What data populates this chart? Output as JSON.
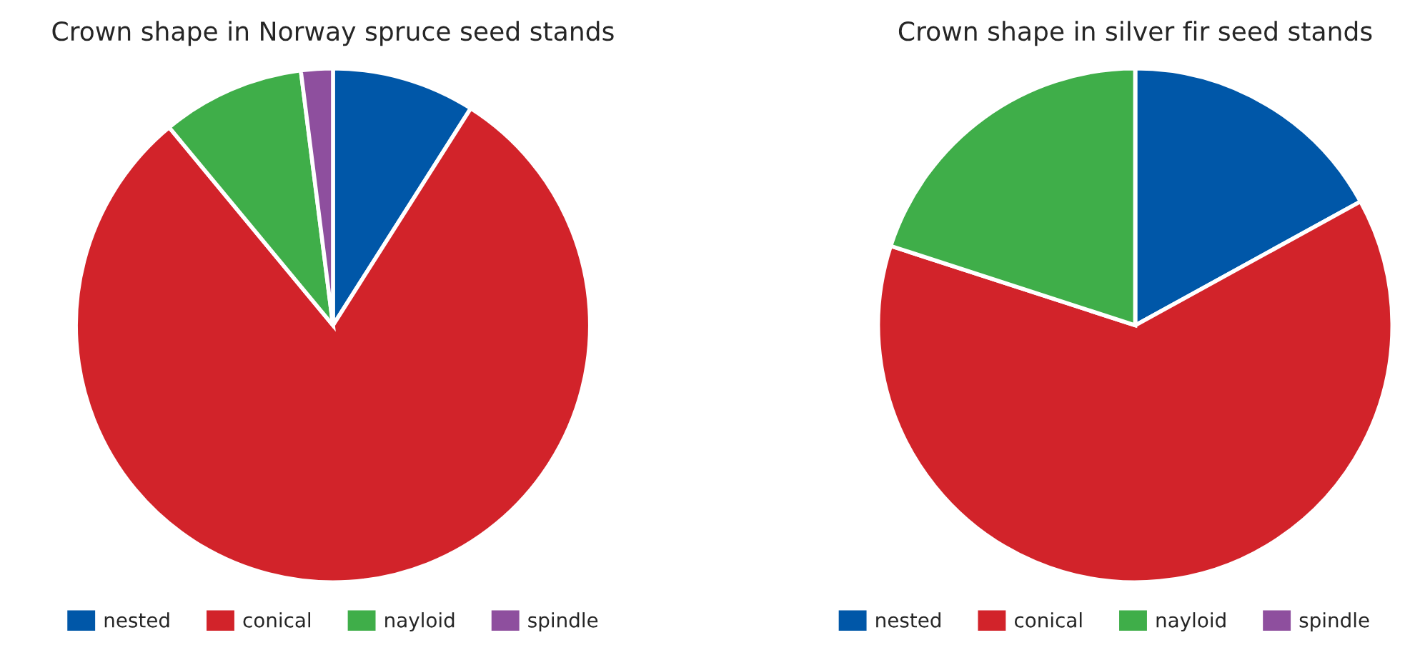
{
  "chart_data": [
    {
      "type": "pie",
      "title": "Crown shape in Norway spruce seed stands",
      "categories": [
        "nested",
        "conical",
        "nayloid",
        "spindle"
      ],
      "values": [
        9,
        80,
        9,
        2
      ],
      "colors": [
        "#0057a8",
        "#d2232a",
        "#3fae49",
        "#8e4f9e"
      ],
      "legend": "bottom"
    },
    {
      "type": "pie",
      "title": "Crown shape in silver fir seed stands",
      "categories": [
        "nested",
        "conical",
        "nayloid",
        "spindle"
      ],
      "values": [
        17,
        63,
        20,
        0
      ],
      "colors": [
        "#0057a8",
        "#d2232a",
        "#3fae49",
        "#8e4f9e"
      ],
      "legend": "bottom"
    }
  ]
}
